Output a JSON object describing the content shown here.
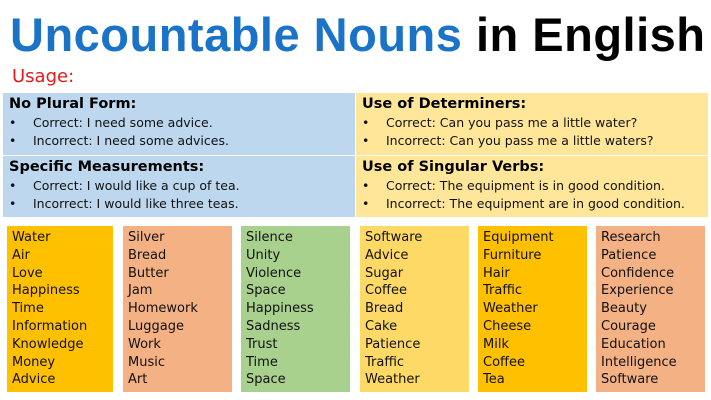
{
  "title": {
    "part1": "Uncountable Nouns",
    "part2": "in English"
  },
  "usage_label": "Usage:",
  "rules": [
    {
      "heading": "No Plural Form:",
      "items": [
        "Correct: I need some advice.",
        "Incorrect: I need some advices."
      ]
    },
    {
      "heading": "Specific Measurements:",
      "items": [
        "Correct: I would like a cup of tea.",
        "Incorrect: I would like three teas."
      ]
    },
    {
      "heading": "Use of Determiners:",
      "items": [
        "Correct: Can you pass me a little water?",
        "Incorrect: Can you pass me a little waters?"
      ]
    },
    {
      "heading": "Use of Singular Verbs:",
      "items": [
        "Correct: The equipment is in good condition.",
        "Incorrect: The equipment are in good condition."
      ]
    }
  ],
  "columns": [
    {
      "color": "#ffc000",
      "words": [
        "Water",
        "Air",
        "Love",
        "Happiness",
        "Time",
        "Information",
        "Knowledge",
        "Money",
        "Advice"
      ]
    },
    {
      "color": "#f4b183",
      "words": [
        "Silver",
        "Bread",
        "Butter",
        "Jam",
        "Homework",
        "Luggage",
        "Work",
        "Music",
        "Art"
      ]
    },
    {
      "color": "#a9d18e",
      "words": [
        "Silence",
        "Unity",
        "Violence",
        "Space",
        "Happiness",
        "Sadness",
        "Trust",
        "Time",
        "Space"
      ]
    },
    {
      "color": "#ffd966",
      "words": [
        "Software",
        "Advice",
        "Sugar",
        "Coffee",
        "Bread",
        "Cake",
        "Patience",
        "Traffic",
        "Weather"
      ]
    },
    {
      "color": "#ffc000",
      "words": [
        "Equipment",
        "Furniture",
        "Hair",
        "Traffic",
        "Weather",
        "Cheese",
        "Milk",
        "Coffee",
        "Tea"
      ]
    },
    {
      "color": "#f4b183",
      "words": [
        "Research",
        "Patience",
        "Confidence",
        "Experience",
        "Beauty",
        "Courage",
        "Education",
        "Intelligence",
        "Software"
      ]
    }
  ]
}
